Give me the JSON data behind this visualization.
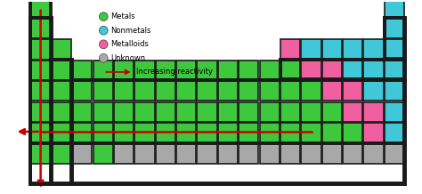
{
  "green": "#3DC83D",
  "cyan": "#40C8D8",
  "pink": "#F060A0",
  "gray": "#A8A8A8",
  "black": "#1a1a1a",
  "bg": "#ffffff",
  "arrow_color": "#CC0000",
  "legend_items": [
    {
      "label": "Metals",
      "color": "#3DC83D"
    },
    {
      "label": "Nonmetals",
      "color": "#40C8D8"
    },
    {
      "label": "Metalloids",
      "color": "#F060A0"
    },
    {
      "label": "Unknown",
      "color": "#A8A8A8"
    }
  ],
  "legend_arrow_label": "Increasing reactivity",
  "grid": [
    {
      "col": 0,
      "row": 0,
      "type": "green"
    },
    {
      "col": 17,
      "row": 0,
      "type": "cyan"
    },
    {
      "col": 0,
      "row": 1,
      "type": "green"
    },
    {
      "col": 17,
      "row": 1,
      "type": "cyan"
    },
    {
      "col": 0,
      "row": 2,
      "type": "green"
    },
    {
      "col": 1,
      "row": 2,
      "type": "green"
    },
    {
      "col": 12,
      "row": 2,
      "type": "pink"
    },
    {
      "col": 13,
      "row": 2,
      "type": "cyan"
    },
    {
      "col": 14,
      "row": 2,
      "type": "cyan"
    },
    {
      "col": 15,
      "row": 2,
      "type": "cyan"
    },
    {
      "col": 16,
      "row": 2,
      "type": "cyan"
    },
    {
      "col": 17,
      "row": 2,
      "type": "cyan"
    },
    {
      "col": 0,
      "row": 3,
      "type": "green"
    },
    {
      "col": 1,
      "row": 3,
      "type": "green"
    },
    {
      "col": 2,
      "row": 3,
      "type": "green"
    },
    {
      "col": 3,
      "row": 3,
      "type": "green"
    },
    {
      "col": 4,
      "row": 3,
      "type": "green"
    },
    {
      "col": 5,
      "row": 3,
      "type": "green"
    },
    {
      "col": 6,
      "row": 3,
      "type": "green"
    },
    {
      "col": 7,
      "row": 3,
      "type": "green"
    },
    {
      "col": 8,
      "row": 3,
      "type": "green"
    },
    {
      "col": 9,
      "row": 3,
      "type": "green"
    },
    {
      "col": 10,
      "row": 3,
      "type": "green"
    },
    {
      "col": 11,
      "row": 3,
      "type": "green"
    },
    {
      "col": 12,
      "row": 3,
      "type": "green"
    },
    {
      "col": 13,
      "row": 3,
      "type": "pink"
    },
    {
      "col": 14,
      "row": 3,
      "type": "pink"
    },
    {
      "col": 15,
      "row": 3,
      "type": "cyan"
    },
    {
      "col": 16,
      "row": 3,
      "type": "cyan"
    },
    {
      "col": 17,
      "row": 3,
      "type": "cyan"
    },
    {
      "col": 0,
      "row": 4,
      "type": "green"
    },
    {
      "col": 1,
      "row": 4,
      "type": "green"
    },
    {
      "col": 2,
      "row": 4,
      "type": "green"
    },
    {
      "col": 3,
      "row": 4,
      "type": "green"
    },
    {
      "col": 4,
      "row": 4,
      "type": "green"
    },
    {
      "col": 5,
      "row": 4,
      "type": "green"
    },
    {
      "col": 6,
      "row": 4,
      "type": "green"
    },
    {
      "col": 7,
      "row": 4,
      "type": "green"
    },
    {
      "col": 8,
      "row": 4,
      "type": "green"
    },
    {
      "col": 9,
      "row": 4,
      "type": "green"
    },
    {
      "col": 10,
      "row": 4,
      "type": "green"
    },
    {
      "col": 11,
      "row": 4,
      "type": "green"
    },
    {
      "col": 12,
      "row": 4,
      "type": "green"
    },
    {
      "col": 13,
      "row": 4,
      "type": "green"
    },
    {
      "col": 14,
      "row": 4,
      "type": "pink"
    },
    {
      "col": 15,
      "row": 4,
      "type": "pink"
    },
    {
      "col": 16,
      "row": 4,
      "type": "cyan"
    },
    {
      "col": 17,
      "row": 4,
      "type": "cyan"
    },
    {
      "col": 0,
      "row": 5,
      "type": "green"
    },
    {
      "col": 1,
      "row": 5,
      "type": "green"
    },
    {
      "col": 2,
      "row": 5,
      "type": "green"
    },
    {
      "col": 3,
      "row": 5,
      "type": "green"
    },
    {
      "col": 4,
      "row": 5,
      "type": "green"
    },
    {
      "col": 5,
      "row": 5,
      "type": "green"
    },
    {
      "col": 6,
      "row": 5,
      "type": "green"
    },
    {
      "col": 7,
      "row": 5,
      "type": "green"
    },
    {
      "col": 8,
      "row": 5,
      "type": "green"
    },
    {
      "col": 9,
      "row": 5,
      "type": "green"
    },
    {
      "col": 10,
      "row": 5,
      "type": "green"
    },
    {
      "col": 11,
      "row": 5,
      "type": "green"
    },
    {
      "col": 12,
      "row": 5,
      "type": "green"
    },
    {
      "col": 13,
      "row": 5,
      "type": "green"
    },
    {
      "col": 14,
      "row": 5,
      "type": "green"
    },
    {
      "col": 15,
      "row": 5,
      "type": "pink"
    },
    {
      "col": 16,
      "row": 5,
      "type": "pink"
    },
    {
      "col": 17,
      "row": 5,
      "type": "cyan"
    },
    {
      "col": 0,
      "row": 6,
      "type": "green"
    },
    {
      "col": 1,
      "row": 6,
      "type": "green"
    },
    {
      "col": 2,
      "row": 6,
      "type": "green"
    },
    {
      "col": 3,
      "row": 6,
      "type": "green"
    },
    {
      "col": 4,
      "row": 6,
      "type": "green"
    },
    {
      "col": 5,
      "row": 6,
      "type": "green"
    },
    {
      "col": 6,
      "row": 6,
      "type": "green"
    },
    {
      "col": 7,
      "row": 6,
      "type": "green"
    },
    {
      "col": 8,
      "row": 6,
      "type": "green"
    },
    {
      "col": 9,
      "row": 6,
      "type": "green"
    },
    {
      "col": 10,
      "row": 6,
      "type": "green"
    },
    {
      "col": 11,
      "row": 6,
      "type": "green"
    },
    {
      "col": 12,
      "row": 6,
      "type": "green"
    },
    {
      "col": 13,
      "row": 6,
      "type": "green"
    },
    {
      "col": 14,
      "row": 6,
      "type": "green"
    },
    {
      "col": 15,
      "row": 6,
      "type": "green"
    },
    {
      "col": 16,
      "row": 6,
      "type": "pink"
    },
    {
      "col": 17,
      "row": 6,
      "type": "cyan"
    },
    {
      "col": 0,
      "row": 7,
      "type": "green"
    },
    {
      "col": 1,
      "row": 7,
      "type": "green"
    },
    {
      "col": 2,
      "row": 7,
      "type": "gray"
    },
    {
      "col": 3,
      "row": 7,
      "type": "green"
    },
    {
      "col": 4,
      "row": 7,
      "type": "gray"
    },
    {
      "col": 5,
      "row": 7,
      "type": "gray"
    },
    {
      "col": 6,
      "row": 7,
      "type": "gray"
    },
    {
      "col": 7,
      "row": 7,
      "type": "gray"
    },
    {
      "col": 8,
      "row": 7,
      "type": "gray"
    },
    {
      "col": 9,
      "row": 7,
      "type": "gray"
    },
    {
      "col": 10,
      "row": 7,
      "type": "gray"
    },
    {
      "col": 11,
      "row": 7,
      "type": "gray"
    },
    {
      "col": 12,
      "row": 7,
      "type": "gray"
    },
    {
      "col": 13,
      "row": 7,
      "type": "gray"
    },
    {
      "col": 14,
      "row": 7,
      "type": "gray"
    },
    {
      "col": 15,
      "row": 7,
      "type": "gray"
    },
    {
      "col": 16,
      "row": 7,
      "type": "gray"
    },
    {
      "col": 17,
      "row": 7,
      "type": "gray"
    }
  ],
  "num_cols": 18,
  "num_rows": 8,
  "horiz_arrow_row": 5,
  "vert_arrow_col": 0
}
